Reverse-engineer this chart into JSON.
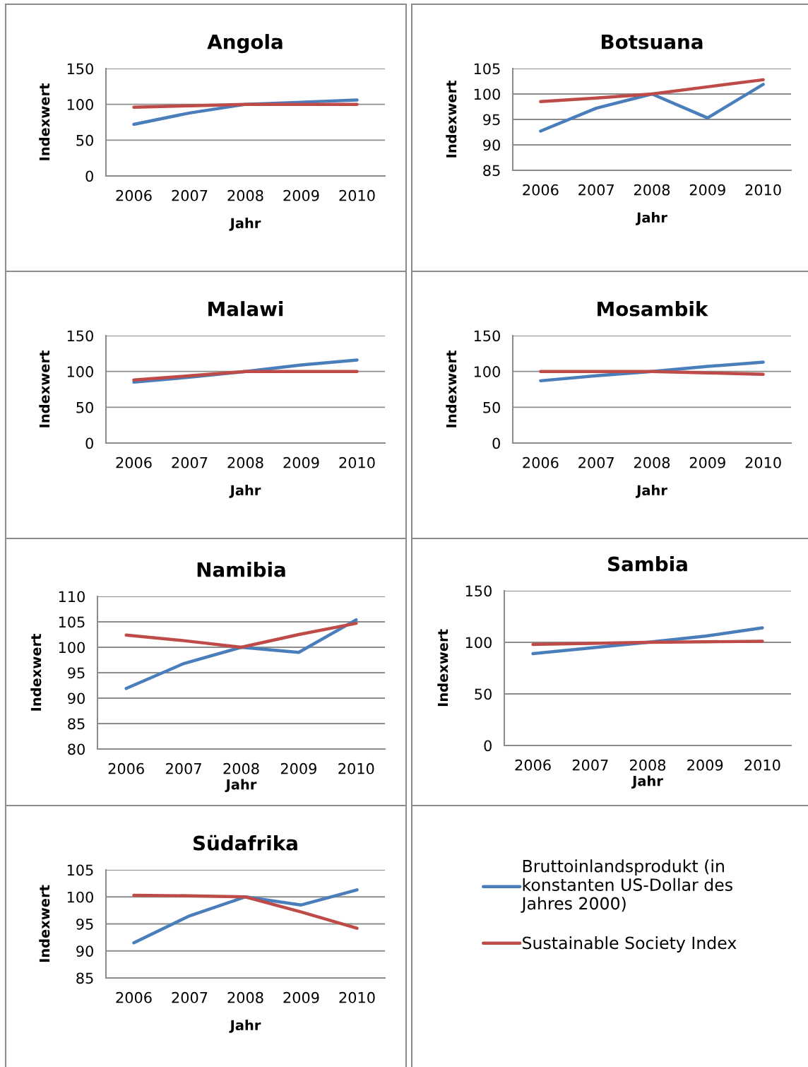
{
  "chart_data": [
    {
      "type": "line",
      "title": "Angola",
      "xlabel": "Jahr",
      "ylabel": "Indexwert",
      "categories": [
        "2006",
        "2007",
        "2008",
        "2009",
        "2010"
      ],
      "ylim": [
        0,
        150
      ],
      "yticks": [
        0,
        50,
        100,
        150
      ],
      "grid": "y",
      "legend": false,
      "marker": "none",
      "line_style": "solid",
      "series": [
        {
          "color": "#4a7ebb",
          "values": [
            72,
            88,
            100,
            103,
            106
          ]
        },
        {
          "color": "#be4b48",
          "values": [
            96,
            98,
            100,
            100,
            100
          ]
        }
      ]
    },
    {
      "type": "line",
      "title": "Botsuana",
      "xlabel": "Jahr",
      "ylabel": "Indexwert",
      "categories": [
        "2006",
        "2007",
        "2008",
        "2009",
        "2010"
      ],
      "ylim": [
        85,
        105
      ],
      "yticks": [
        85,
        90,
        95,
        100,
        105
      ],
      "grid": "y",
      "legend": false,
      "marker": "none",
      "line_style": "solid",
      "series": [
        {
          "color": "#4a7ebb",
          "values": [
            92.7,
            97.2,
            100,
            95.3,
            101.9
          ]
        },
        {
          "color": "#be4b48",
          "values": [
            98.5,
            99.2,
            100,
            101.4,
            102.8
          ]
        }
      ]
    },
    {
      "type": "line",
      "title": "Malawi",
      "xlabel": "Jahr",
      "ylabel": "Indexwert",
      "categories": [
        "2006",
        "2007",
        "2008",
        "2009",
        "2010"
      ],
      "ylim": [
        0,
        150
      ],
      "yticks": [
        0,
        50,
        100,
        150
      ],
      "grid": "y",
      "legend": false,
      "marker": "none",
      "line_style": "solid",
      "series": [
        {
          "color": "#4a7ebb",
          "values": [
            85,
            92,
            100,
            109,
            116
          ]
        },
        {
          "color": "#be4b48",
          "values": [
            88,
            94,
            100,
            100,
            100
          ]
        }
      ]
    },
    {
      "type": "line",
      "title": "Mosambik",
      "xlabel": "Jahr",
      "ylabel": "Indexwert",
      "categories": [
        "2006",
        "2007",
        "2008",
        "2009",
        "2010"
      ],
      "ylim": [
        0,
        150
      ],
      "yticks": [
        0,
        50,
        100,
        150
      ],
      "grid": "y",
      "legend": false,
      "marker": "none",
      "line_style": "solid",
      "series": [
        {
          "color": "#4a7ebb",
          "values": [
            87,
            94,
            100,
            107,
            113
          ]
        },
        {
          "color": "#be4b48",
          "values": [
            100,
            100,
            100,
            98,
            96
          ]
        }
      ]
    },
    {
      "type": "line",
      "title": "Namibia",
      "xlabel": "Jahr",
      "ylabel": "Indexwert",
      "categories": [
        "2006",
        "2007",
        "2008",
        "2009",
        "2010"
      ],
      "ylim": [
        80,
        110
      ],
      "yticks": [
        80,
        85,
        90,
        95,
        100,
        105,
        110
      ],
      "grid": "y",
      "legend": false,
      "marker": "none",
      "line_style": "solid",
      "series": [
        {
          "color": "#4a7ebb",
          "values": [
            91.9,
            96.8,
            100,
            99.0,
            105.4
          ]
        },
        {
          "color": "#be4b48",
          "values": [
            102.4,
            101.3,
            100,
            102.5,
            104.7
          ]
        }
      ]
    },
    {
      "type": "line",
      "title": "Sambia",
      "xlabel": "Jahr",
      "ylabel": "Indexwert",
      "categories": [
        "2006",
        "2007",
        "2008",
        "2009",
        "2010"
      ],
      "ylim": [
        0,
        150
      ],
      "yticks": [
        0,
        50,
        100,
        150
      ],
      "grid": "y",
      "legend": false,
      "marker": "none",
      "line_style": "solid",
      "series": [
        {
          "color": "#4a7ebb",
          "values": [
            89,
            94.5,
            100,
            106,
            114
          ]
        },
        {
          "color": "#be4b48",
          "values": [
            98,
            99,
            100,
            100.5,
            101
          ]
        }
      ]
    },
    {
      "type": "line",
      "title": "Südafrika",
      "xlabel": "Jahr",
      "ylabel": "Indexwert",
      "categories": [
        "2006",
        "2007",
        "2008",
        "2009",
        "2010"
      ],
      "ylim": [
        85,
        105
      ],
      "yticks": [
        85,
        90,
        95,
        100,
        105
      ],
      "grid": "y",
      "legend": "right",
      "marker": "none",
      "line_style": "solid",
      "series": [
        {
          "name": "Bruttoinlandsprodukt (in konstanten US-Dollar des Jahres 2000)",
          "color": "#4a7ebb",
          "values": [
            91.5,
            96.5,
            100,
            98.5,
            101.3
          ]
        },
        {
          "name": "Sustainable Society Index",
          "color": "#be4b48",
          "values": [
            100.3,
            100.2,
            100,
            97.2,
            94.2
          ]
        }
      ]
    }
  ]
}
